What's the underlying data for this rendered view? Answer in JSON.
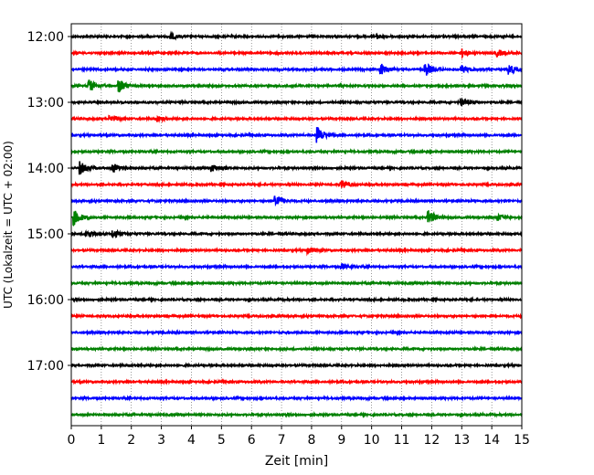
{
  "chart_data": {
    "type": "line",
    "title": "",
    "xlabel": "Zeit  [min]",
    "ylabel": "UTC (Lokalzeit = UTC + 02:00)",
    "xlim": [
      0,
      15
    ],
    "x_ticks": [
      "0",
      "1",
      "2",
      "3",
      "4",
      "5",
      "6",
      "7",
      "8",
      "9",
      "10",
      "11",
      "12",
      "13",
      "14",
      "15"
    ],
    "y_ticks": [
      "12:00",
      "13:00",
      "14:00",
      "15:00",
      "16:00",
      "17:00"
    ],
    "grid": "vertical dotted lines at each minute",
    "row_interval_minutes": 15,
    "color_cycle": [
      "#000000",
      "#ff0000",
      "#0000ff",
      "#008000"
    ],
    "rows": [
      {
        "start": "12:00",
        "color": "#000000",
        "events": [
          {
            "t": 3.3,
            "a": 0.5
          },
          {
            "t": 10.2,
            "a": 0.3
          }
        ]
      },
      {
        "start": "12:15",
        "color": "#ff0000",
        "events": [
          {
            "t": 13.0,
            "a": 0.6
          },
          {
            "t": 14.2,
            "a": 0.5
          }
        ]
      },
      {
        "start": "12:30",
        "color": "#0000ff",
        "events": [
          {
            "t": 10.3,
            "a": 0.9
          },
          {
            "t": 11.8,
            "a": 1.0
          },
          {
            "t": 13.0,
            "a": 0.6
          },
          {
            "t": 14.6,
            "a": 0.8
          }
        ]
      },
      {
        "start": "12:45",
        "color": "#008000",
        "events": [
          {
            "t": 0.6,
            "a": 0.9
          },
          {
            "t": 1.6,
            "a": 1.0
          }
        ]
      },
      {
        "start": "13:00",
        "color": "#000000",
        "events": [
          {
            "t": 13.0,
            "a": 0.6
          }
        ]
      },
      {
        "start": "13:15",
        "color": "#ff0000",
        "events": [
          {
            "t": 1.3,
            "a": 0.5
          },
          {
            "t": 2.9,
            "a": 0.4
          }
        ]
      },
      {
        "start": "13:30",
        "color": "#0000ff",
        "events": [
          {
            "t": 8.2,
            "a": 1.2
          }
        ]
      },
      {
        "start": "13:45",
        "color": "#008000",
        "events": []
      },
      {
        "start": "14:00",
        "color": "#000000",
        "events": [
          {
            "t": 0.3,
            "a": 1.0
          },
          {
            "t": 1.4,
            "a": 0.7
          },
          {
            "t": 4.7,
            "a": 0.5
          }
        ]
      },
      {
        "start": "14:15",
        "color": "#ff0000",
        "events": [
          {
            "t": 9.0,
            "a": 0.6
          }
        ]
      },
      {
        "start": "14:30",
        "color": "#0000ff",
        "events": [
          {
            "t": 6.8,
            "a": 1.1
          }
        ]
      },
      {
        "start": "14:45",
        "color": "#008000",
        "events": [
          {
            "t": 0.1,
            "a": 1.1
          },
          {
            "t": 11.9,
            "a": 1.0
          },
          {
            "t": 14.2,
            "a": 0.5
          }
        ]
      },
      {
        "start": "15:00",
        "color": "#000000",
        "events": [
          {
            "t": 0.5,
            "a": 0.7
          },
          {
            "t": 1.4,
            "a": 0.6
          }
        ]
      },
      {
        "start": "15:15",
        "color": "#ff0000",
        "events": [
          {
            "t": 7.9,
            "a": 0.5
          }
        ]
      },
      {
        "start": "15:30",
        "color": "#0000ff",
        "events": [
          {
            "t": 9.0,
            "a": 0.4
          }
        ]
      },
      {
        "start": "15:45",
        "color": "#008000",
        "events": []
      },
      {
        "start": "16:00",
        "color": "#000000",
        "events": []
      },
      {
        "start": "16:15",
        "color": "#ff0000",
        "events": []
      },
      {
        "start": "16:30",
        "color": "#0000ff",
        "events": []
      },
      {
        "start": "16:45",
        "color": "#008000",
        "events": []
      },
      {
        "start": "17:00",
        "color": "#000000",
        "events": []
      },
      {
        "start": "17:15",
        "color": "#ff0000",
        "events": []
      },
      {
        "start": "17:30",
        "color": "#0000ff",
        "events": []
      },
      {
        "start": "17:45",
        "color": "#008000",
        "events": []
      }
    ]
  }
}
